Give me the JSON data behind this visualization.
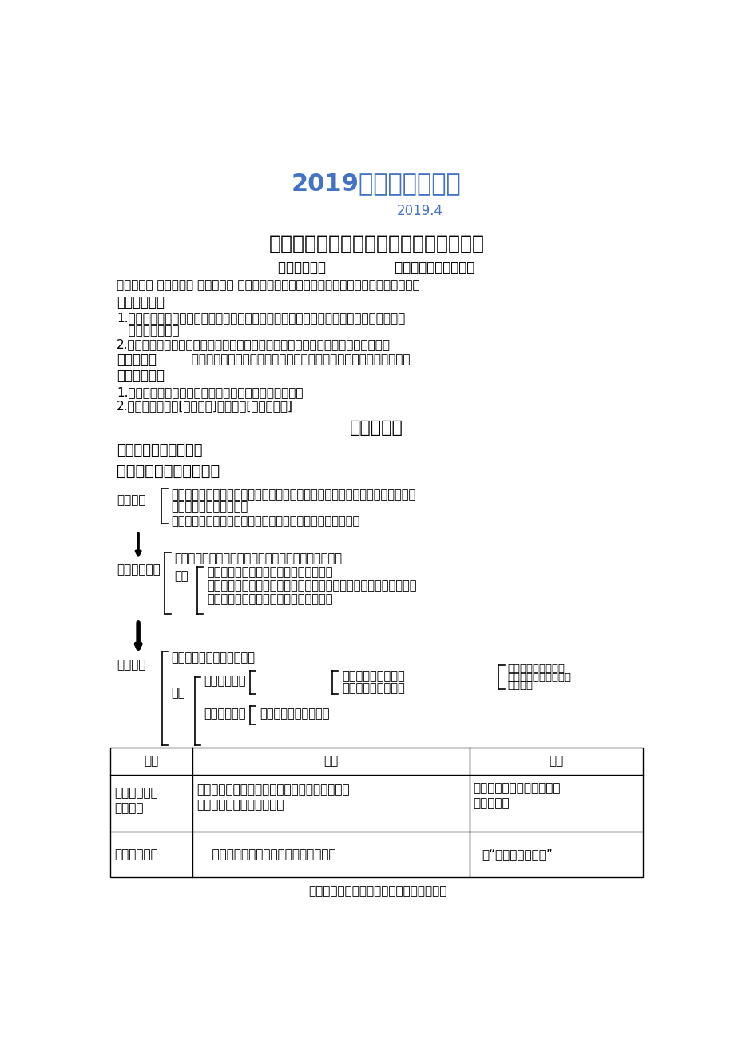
{
  "bg_color": "#ffffff",
  "title1": "2019版地理精品资料",
  "title1_color": "#4472c4",
  "title2": "2019.4",
  "title2_color": "#4472c4",
  "title3": "第四章第２节《工业地域的形成》导学案",
  "title3_color": "#000000",
  "editor_line": "编制：周解令               审核：高一地理备课组",
  "student_line": "高一＿＿班 第＿＿小组 学号：＿＿ 姓名：＿＿＿＿小组评价：＿＿＿＿老师评价：＿＿＿＿",
  "section_xuexi": "《学习目标》",
  "xuexi1a": "1.运用案例理解工业联系、工业集聚、工业地域三个概念的区别与联系，理解工业地域形",
  "xuexi1b": "   成的主要原因。",
  "xuexi2": "2.了解工业集聚和分散的主要表现形式、原因和优势以及工业地域联系的主要形式。",
  "section_zhongnan": "《重难点》",
  "zhongnan_text": "  理解工业地域形成的主要原因，分析工业集聚和分散的原因及优势。",
  "section_shiyong": "《使用说明》",
  "shiyong1": "1.课前预习：根据导学案梳理基础知识，完成探究题目。",
  "shiyong2": "2.课后作业：完成[金版学案]和本节的[知识结构图]",
  "section_kqy": "课前预习案",
  "section_jichu": "《教材基础知识梳理》",
  "section_yi": "一、工业集聚与工业地域",
  "lbl_gylianxi": "工业联系",
  "lbl_gyji": "工业＿＿＿＿",
  "lbl_gydiyu": "工业地域",
  "txt_lianxi1a": "＿＿＿＿＿＿上的联系：工厂之间存在着产品与原料的联系，一家工厂生产的产",
  "txt_lianxi1b": "品是另一家工厂的原料。",
  "txt_lianxi2": "＿＿＿＿＿＿上的联系：共同利用基础设施或廉价的劳动力。",
  "txt_xingcheng": "形成：具有工业联系的一些工厂往往近距离聚集起来。",
  "lbl_youshi": "优势",
  "txt_youshi1": "加强企业间的＿＿＿＿＿和＿＿＿＿＿。",
  "txt_youshi2": "＿＿＿＿＿的运输费用和＿＿＿＿，降低生产成本，获得＿＿效益。",
  "txt_youshi3": "共同＿＿＿＿＿＿；节约＿＿＿＿＿＿。",
  "txt_gainian": "概念：工业集聚而成的地域",
  "lbl_leixing": "类型",
  "txt_classify1": "＿＿＿＿分类",
  "txt_zifachengyi": "自发形成的工业地域",
  "txt_guihua": "规划建设的工业地域",
  "txt_yijilianxi": "以＿＿＿＿的工业联",
  "txt_weijichux": "系为基础，以＿＿＿＿",
  "txt_weimudi": "为目的。",
  "txt_classify2": "＿＿＿＿分类",
  "txt_fayudi": "发育程度低的工业地域",
  "tbl_hdr1": "类型",
  "tbl_hdr2": "特点",
  "tbl_hdr3": "举例",
  "tbl_r1c1a": "发育程度高的",
  "tbl_r1c1b": "工业地域",
  "tbl_r1c2a": "内部工业联系比较复杂，工业地域＿＿＿＿，协",
  "tbl_r1c2b": "作企业＿＿，生产规模大。",
  "tbl_r1c3a": "鞍山＿＿城、大庆＿＿城、",
  "tbl_r1c3b": "十堼＿＿等",
  "tbl_r2c1": "发育程度低的",
  "tbl_r2c2": "    工业联系＿＿，规模＿＿，工厂＿＿。",
  "tbl_r2c3": "无“糖果城、糕点城”",
  "footer_note": "发育程度高的工业地域：如：钉城、汽车城"
}
